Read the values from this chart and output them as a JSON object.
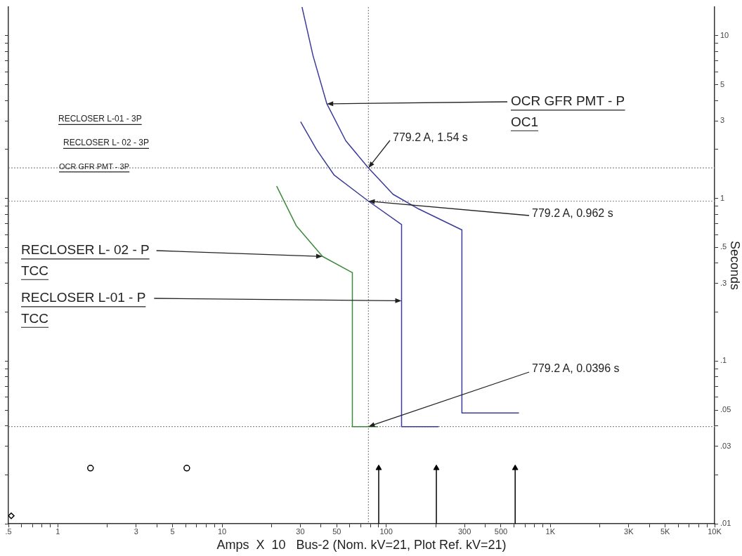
{
  "chart_data": {
    "type": "line",
    "log": "xy",
    "xlabel": "Amps  X  10   Bus-2 (Nom. kV=21, Plot Ref. kV=21)",
    "ylabel": "Seconds",
    "xlim": [
      0.5,
      10000
    ],
    "ylim": [
      0.01,
      15
    ],
    "xticks": [
      {
        "value": 0.5,
        "label": ".5"
      },
      {
        "value": 0.6,
        "label": null
      },
      {
        "value": 0.7,
        "label": null
      },
      {
        "value": 0.8,
        "label": null
      },
      {
        "value": 0.9,
        "label": null
      },
      1,
      {
        "value": 2,
        "label": null
      },
      3,
      {
        "value": 4,
        "label": null
      },
      5,
      {
        "value": 6,
        "label": null
      },
      {
        "value": 7,
        "label": null
      },
      {
        "value": 8,
        "label": null
      },
      {
        "value": 9,
        "label": null
      },
      10,
      {
        "value": 20,
        "label": null
      },
      30,
      {
        "value": 40,
        "label": null
      },
      50,
      {
        "value": 60,
        "label": null
      },
      {
        "value": 70,
        "label": null
      },
      {
        "value": 80,
        "label": null
      },
      {
        "value": 90,
        "label": null
      },
      100,
      {
        "value": 200,
        "label": null
      },
      300,
      {
        "value": 400,
        "label": null
      },
      500,
      {
        "value": 600,
        "label": null
      },
      {
        "value": 700,
        "label": null
      },
      {
        "value": 800,
        "label": null
      },
      {
        "value": 900,
        "label": null
      },
      {
        "value": 1000,
        "label": "1K"
      },
      {
        "value": 2000,
        "label": null
      },
      {
        "value": 3000,
        "label": "3K"
      },
      {
        "value": 4000,
        "label": null
      },
      {
        "value": 5000,
        "label": "5K"
      },
      {
        "value": 6000,
        "label": null
      },
      {
        "value": 7000,
        "label": null
      },
      {
        "value": 8000,
        "label": null
      },
      {
        "value": 9000,
        "label": null
      },
      {
        "value": 10000,
        "label": "10K"
      }
    ],
    "yticks": [
      {
        "value": 0.01,
        "label": ".01"
      },
      {
        "value": 0.02,
        "label": null
      },
      {
        "value": 0.03,
        "label": ".03"
      },
      {
        "value": 0.04,
        "label": null
      },
      {
        "value": 0.05,
        "label": ".05"
      },
      {
        "value": 0.06,
        "label": null
      },
      {
        "value": 0.07,
        "label": null
      },
      {
        "value": 0.08,
        "label": null
      },
      {
        "value": 0.09,
        "label": null
      },
      {
        "value": 0.1,
        "label": ".1"
      },
      {
        "value": 0.2,
        "label": null
      },
      {
        "value": 0.3,
        "label": ".3"
      },
      {
        "value": 0.4,
        "label": null
      },
      {
        "value": 0.5,
        "label": ".5"
      },
      {
        "value": 0.6,
        "label": null
      },
      {
        "value": 0.7,
        "label": null
      },
      {
        "value": 0.8,
        "label": null
      },
      {
        "value": 0.9,
        "label": null
      },
      1,
      {
        "value": 2,
        "label": null
      },
      3,
      {
        "value": 4,
        "label": null
      },
      5,
      {
        "value": 6,
        "label": null
      },
      {
        "value": 7,
        "label": null
      },
      {
        "value": 8,
        "label": null
      },
      {
        "value": 9,
        "label": null
      },
      10
    ],
    "series": [
      {
        "type": "line",
        "color": "#3b3b9b",
        "marker": "none",
        "x": [
          30.7,
          35.8,
          43.5,
          56.7,
          77.92,
          110,
          158,
          289,
          289,
          643
        ],
        "values": [
          15,
          7.55,
          3.81,
          2.26,
          1.54,
          1.06,
          0.86,
          0.64,
          0.048,
          0.048
        ]
      },
      {
        "type": "line",
        "color": "#3b3b9b",
        "marker": "none",
        "x": [
          30.1,
          37.6,
          48.2,
          77.92,
          124,
          124,
          208
        ],
        "values": [
          2.96,
          2.0,
          1.39,
          0.962,
          0.69,
          0.0396,
          0.0396
        ]
      },
      {
        "type": "line",
        "color": "#3c8a3c",
        "marker": "none",
        "x": [
          21.5,
          28.3,
          40.9,
          62.2,
          62.2,
          89
        ],
        "values": [
          1.19,
          0.68,
          0.44,
          0.35,
          0.0396,
          0.0396
        ]
      },
      {
        "type": "scatter",
        "color": "#000000",
        "marker": "circle",
        "x": [
          1.58,
          6.1
        ],
        "values": [
          0.022,
          0.022
        ]
      },
      {
        "type": "scatter",
        "color": "#000000",
        "marker": "diamond",
        "x": [
          0.52
        ],
        "values": [
          0.0112
        ]
      },
      {
        "type": "lollipop",
        "color": "#000000",
        "marker": "triangle",
        "x": [
          90,
          202,
          610
        ],
        "values": [
          0.022,
          0.022,
          0.022
        ]
      }
    ],
    "ref_lines": [
      {
        "axis": "x",
        "value": 77.92,
        "color": "#8a8a8a",
        "line_style": "dotted"
      },
      {
        "axis": "y",
        "value": 1.54,
        "color": "#8a8a8a",
        "line_style": "dotted"
      },
      {
        "axis": "y",
        "value": 0.962,
        "color": "#8a8a8a",
        "line_style": "dotted"
      },
      {
        "axis": "y",
        "value": 0.0396,
        "color": "#8a8a8a",
        "line_style": "dotted"
      }
    ],
    "annotations": [
      "RECLOSER L-01 - 3P",
      "RECLOSER L- 02 - 3P",
      "OCR GFR PMT - 3P",
      {
        "text": "OCR GFR PMT - P\nOC1",
        "x": 43.5,
        "y": 3.81
      },
      {
        "text": "779.2 A, 1.54 s",
        "x": 77.92,
        "y": 1.54
      },
      {
        "text": "779.2 A, 0.962 s",
        "x": 77.92,
        "y": 0.962
      },
      {
        "text": "779.2 A, 0.0396 s",
        "x": 77.92,
        "y": 0.0396
      },
      {
        "text": "RECLOSER L- 02 - P\nTCC",
        "x": 40.9,
        "y": 0.44
      },
      {
        "text": "RECLOSER L-01 - P\nTCC",
        "x": 124,
        "y": 0.235
      }
    ]
  }
}
